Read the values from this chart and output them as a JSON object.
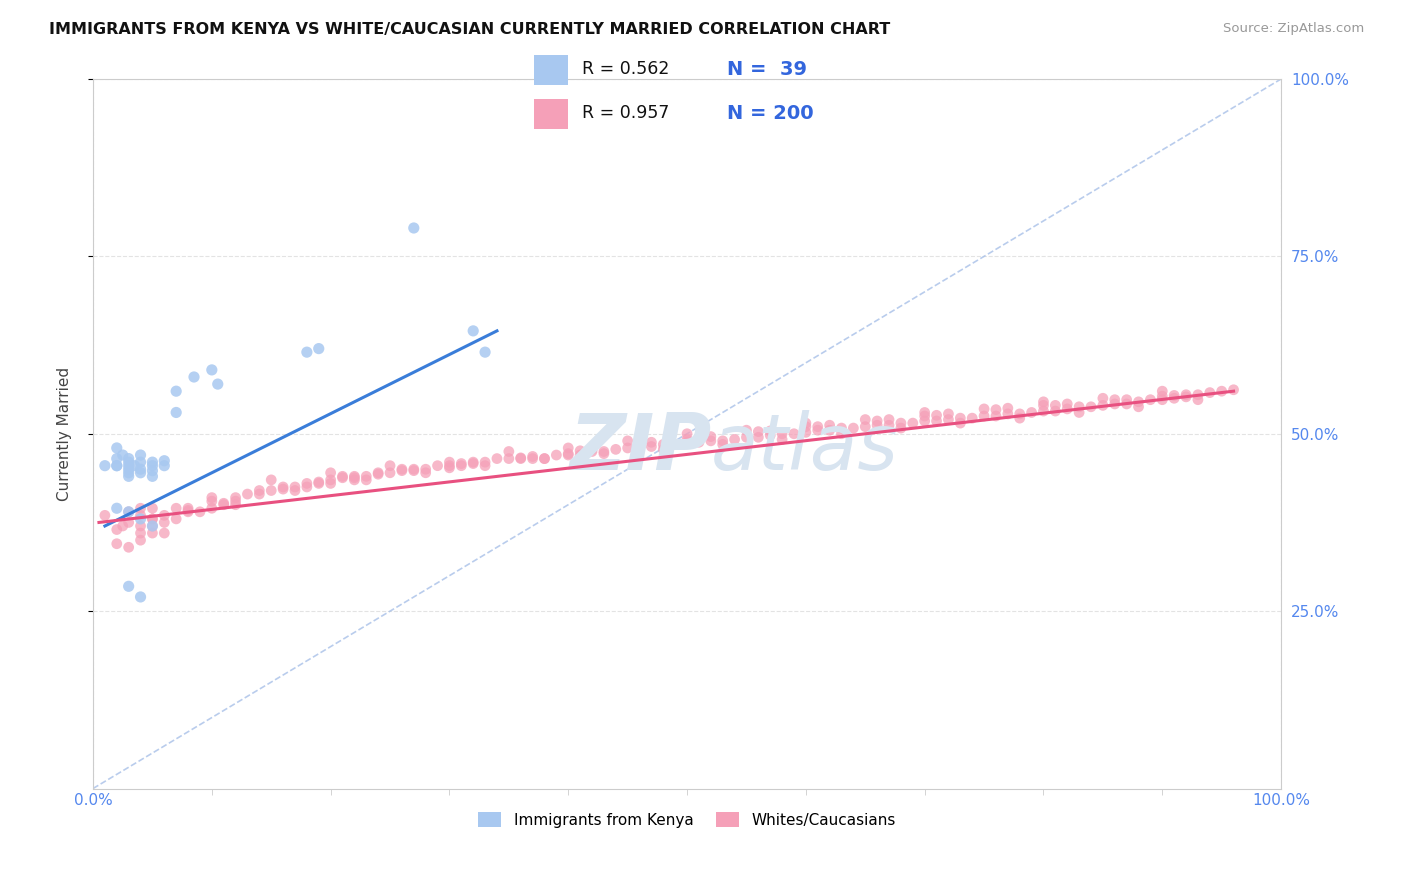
{
  "title": "IMMIGRANTS FROM KENYA VS WHITE/CAUCASIAN CURRENTLY MARRIED CORRELATION CHART",
  "source": "Source: ZipAtlas.com",
  "ylabel": "Currently Married",
  "xlim": [
    0.0,
    1.0
  ],
  "ylim": [
    0.0,
    1.0
  ],
  "right_ytick_labels": [
    "25.0%",
    "50.0%",
    "75.0%",
    "100.0%"
  ],
  "right_ytick_vals": [
    0.25,
    0.5,
    0.75,
    1.0
  ],
  "blue_color": "#A8C8F0",
  "pink_color": "#F5A0B8",
  "blue_line_color": "#3A7DD9",
  "pink_line_color": "#E85080",
  "diag_color": "#A8C0E8",
  "grid_color": "#DDDDDD",
  "spine_color": "#CCCCCC",
  "title_color": "#111111",
  "source_color": "#999999",
  "right_tick_color": "#5588EE",
  "bottom_tick_color": "#5588EE",
  "watermark_color": "#D8E4F0"
}
